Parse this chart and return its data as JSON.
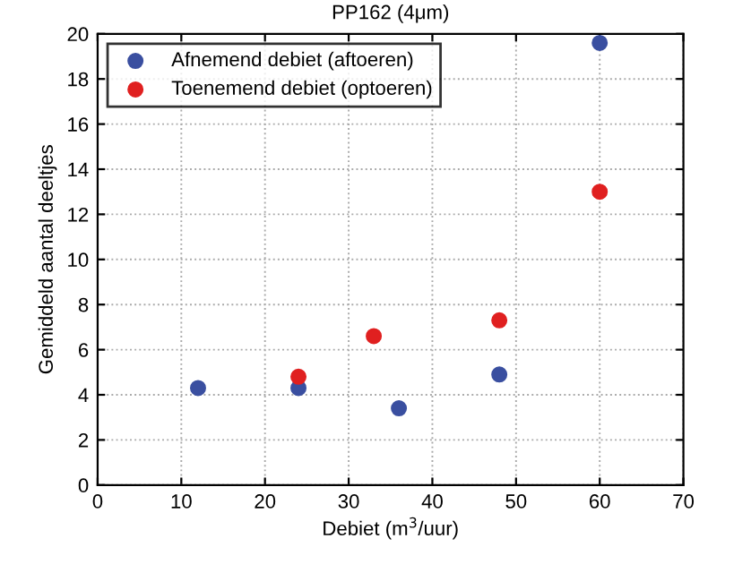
{
  "chart_data": {
    "type": "scatter",
    "title": "PP162 (4μm)",
    "xlabel": "Debiet (m$^{3}$/uur)",
    "ylabel": "Gemiddeld aantal deeltjes",
    "series": [
      {
        "name": "Afnemend debiet (aftoeren)",
        "color": "#3a4fa0",
        "x": [
          12,
          24,
          36,
          48,
          60
        ],
        "values": [
          4.3,
          4.3,
          3.4,
          4.9,
          19.6
        ]
      },
      {
        "name": "Toenemend debiet (optoeren)",
        "color": "#e02020",
        "x": [
          24,
          33,
          48,
          60
        ],
        "values": [
          4.8,
          6.6,
          7.3,
          13.0
        ]
      }
    ],
    "xlim": [
      0,
      70
    ],
    "xticks": [
      0,
      10,
      20,
      30,
      40,
      50,
      60,
      70
    ],
    "ylim": [
      0,
      20
    ],
    "yticks": [
      0,
      2,
      4,
      6,
      8,
      10,
      12,
      14,
      16,
      18,
      20
    ],
    "grid": true,
    "legend": "top left",
    "marker": "circle"
  }
}
